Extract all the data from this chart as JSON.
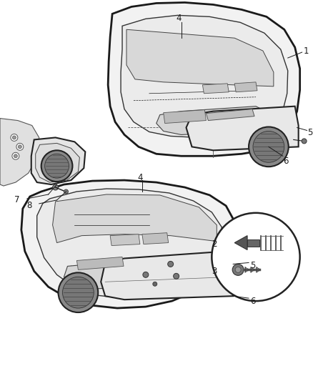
{
  "background_color": "#ffffff",
  "fig_width": 4.38,
  "fig_height": 5.33,
  "dpi": 100,
  "line_color": "#1a1a1a",
  "text_color": "#1a1a1a",
  "fill_light": "#f0f0f0",
  "fill_mid": "#e0e0e0",
  "fill_dark": "#c8c8c8"
}
